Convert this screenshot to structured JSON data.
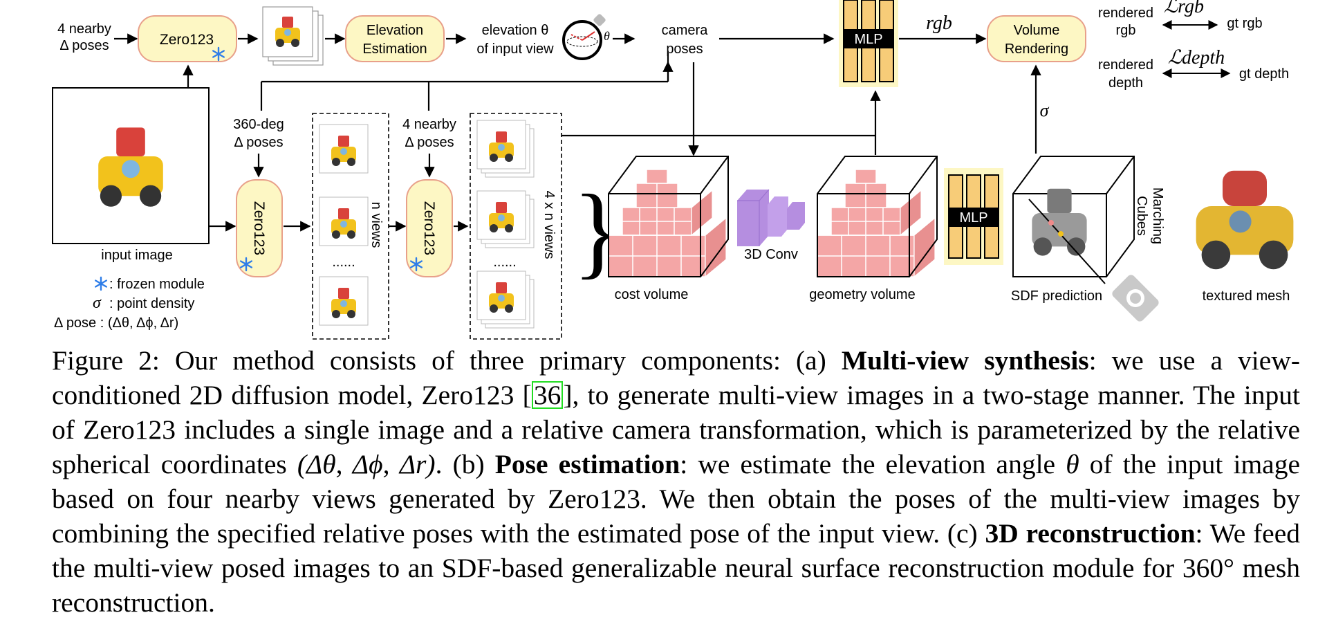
{
  "figure": {
    "zero123_top": "Zero123",
    "nearby_poses_1": "4 nearby",
    "nearby_poses_2": "Δ poses",
    "elevation_estimation_1": "Elevation",
    "elevation_estimation_2": "Estimation",
    "elevation_label_1": "elevation θ",
    "elevation_label_2": "of input view",
    "theta": "θ",
    "camera_poses_1": "camera",
    "camera_poses_2": "poses",
    "mlp": "MLP",
    "rgb": "rgb",
    "volume_rendering_1": "Volume",
    "volume_rendering_2": "Rendering",
    "rendered_rgb_1": "rendered",
    "rendered_rgb_2": "rgb",
    "loss_rgb": "ℒrgb",
    "gt_rgb": "gt rgb",
    "rendered_depth_1": "rendered",
    "rendered_depth_2": "depth",
    "loss_depth": "ℒdepth",
    "gt_depth": "gt depth",
    "sigma": "σ",
    "deg360_1": "360-deg",
    "deg360_2": "Δ poses",
    "nearby2_1": "4 nearby",
    "nearby2_2": "Δ poses",
    "zero123_mid1": "Zero123",
    "zero123_mid2": "Zero123",
    "n_views": "n views",
    "four_n_views": "4 x n views",
    "dots": "......",
    "input_image": "input image",
    "legend_frozen": ": frozen module",
    "legend_sigma": "σ",
    "legend_density": ": point density",
    "legend_pose": "Δ pose : (Δθ, Δϕ, Δr)",
    "cost_volume": "cost volume",
    "conv3d": "3D Conv",
    "geometry_volume": "geometry volume",
    "sdf_prediction": "SDF prediction",
    "marching_1": "Marching",
    "marching_2": "Cubes",
    "textured_mesh": "textured mesh"
  },
  "caption": {
    "lead": "Figure 2: Our method consists of three primary components: (a) ",
    "bold_a": "Multi-view synthesis",
    "text_a": ": we use a view-conditioned 2D diffusion model, Zero123 [",
    "ref": "36",
    "text_a2": "], to generate multi-view images in a two-stage manner. The input of Zero123 includes a single image and a relative camera transformation, which is parameterized by the relative spherical coordinates ",
    "math_1": "(Δθ, Δϕ, Δr)",
    "text_a3": ". (b) ",
    "bold_b": "Pose estimation",
    "text_b": ": we estimate the elevation angle ",
    "math_2": "θ",
    "text_b2": " of the input image based on four nearby views generated by Zero123. We then obtain the poses of the multi-view images by combining the specified relative poses with the estimated pose of the input view. (c) ",
    "bold_c": "3D reconstruction",
    "text_c": ": We feed the multi-view posed images to an SDF-based generalizable neural surface reconstruction module for 360° mesh reconstruction."
  },
  "colors": {
    "module_fill": "#fdf7c4",
    "module_stroke": "#e8a08a",
    "mlp_fill": "#f7cc78",
    "cube_fill": "#f4a6a6",
    "conv_fill": "#b58ee0",
    "frozen_icon": "#2e7de8",
    "ref_box": "#22dd22"
  }
}
